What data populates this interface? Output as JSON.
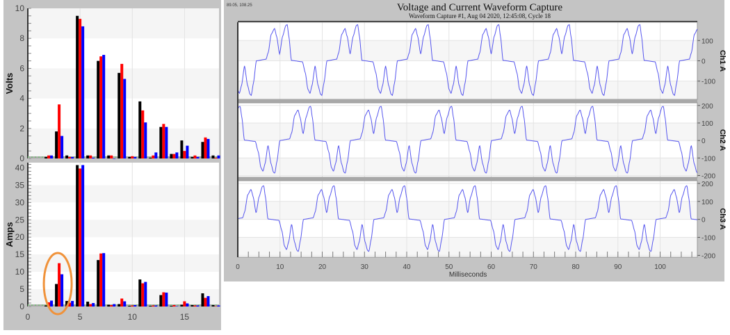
{
  "chart_data": [
    {
      "type": "bar",
      "ylabel": "Volts",
      "ylim": [
        0,
        10
      ],
      "yticks": [
        0,
        2,
        4,
        6,
        8,
        10
      ],
      "xlim": [
        0,
        18.3
      ],
      "xticks": [
        0,
        5,
        10,
        15
      ],
      "categories": [
        2,
        3,
        4,
        5,
        6,
        7,
        8,
        9,
        10,
        11,
        12,
        13,
        14,
        15,
        16,
        17,
        18
      ],
      "series_colors": [
        "#000000",
        "#ff0000",
        "#0000ff"
      ],
      "series": [
        {
          "values": [
            0.1,
            1.8,
            0.2,
            9.5,
            0.2,
            6.5,
            0.2,
            5.7,
            0.1,
            3.8,
            0.05,
            2.1,
            0.3,
            1.2,
            0.1,
            1.1,
            0.2
          ]
        },
        {
          "values": [
            0.2,
            3.6,
            0.1,
            9.3,
            0.2,
            6.8,
            0.2,
            6.3,
            0.15,
            3.2,
            0.2,
            2.3,
            0.3,
            0.5,
            0.2,
            1.4,
            0.05
          ]
        },
        {
          "values": [
            0.2,
            1.5,
            0.1,
            8.8,
            0.05,
            6.9,
            0.0,
            5.3,
            0.1,
            2.4,
            0.4,
            2.1,
            0.4,
            0.85,
            0.1,
            1.3,
            0.2
          ]
        }
      ],
      "grid": true
    },
    {
      "type": "bar",
      "ylabel": "Amps",
      "ylim": [
        0,
        41.5
      ],
      "yticks": [
        0,
        5,
        10,
        15,
        20,
        25,
        30,
        35,
        40
      ],
      "xlim": [
        0,
        18.3
      ],
      "xticks": [
        0,
        5,
        10,
        15
      ],
      "categories": [
        2,
        3,
        4,
        5,
        6,
        7,
        8,
        9,
        10,
        11,
        12,
        13,
        14,
        15,
        16,
        17,
        18
      ],
      "series_colors": [
        "#000000",
        "#ff0000",
        "#0000ff"
      ],
      "series": [
        {
          "values": [
            0.3,
            6.5,
            1.6,
            40.8,
            1.4,
            13.4,
            0.5,
            0.7,
            0.2,
            7.8,
            0.2,
            3.3,
            0.2,
            0.5,
            0.4,
            3.8,
            0.4
          ]
        },
        {
          "values": [
            1.2,
            12.5,
            1.1,
            39.8,
            0.7,
            15.3,
            0.4,
            2.3,
            0.3,
            6.7,
            0.3,
            4.1,
            0.4,
            1.5,
            0.3,
            2.5,
            0.1
          ]
        },
        {
          "values": [
            1.7,
            9.3,
            1.6,
            40.8,
            1.0,
            15.4,
            0.7,
            1.5,
            0.4,
            7.1,
            0.3,
            4.0,
            0.1,
            0.9,
            0.3,
            3.0,
            0.3
          ]
        }
      ],
      "annotation": {
        "type": "ellipse",
        "around_category": 3,
        "color": "#f0923a"
      },
      "grid": true
    },
    {
      "type": "line",
      "title": "Voltage and Current Waveform Capture",
      "subtitle": "Waveform Capture #1, Aug 04 2020, 12:45:08,  Cycle 18",
      "cursor_readout": "89.05, 108.25",
      "xlabel": "Milliseconds",
      "xlim": [
        0,
        108.8
      ],
      "xticks": [
        0,
        10,
        20,
        30,
        40,
        50,
        60,
        70,
        80,
        90,
        100
      ],
      "line_color": "#5555ee",
      "cycle_ms": 16.7,
      "cycle_shape_ch1": [
        [
          0,
          0
        ],
        [
          2.3,
          8
        ],
        [
          2.8,
          40
        ],
        [
          3.5,
          130
        ],
        [
          4.3,
          159
        ],
        [
          4.8,
          120
        ],
        [
          5.5,
          34
        ],
        [
          6.2,
          120
        ],
        [
          7.0,
          175
        ],
        [
          7.3,
          178
        ],
        [
          7.7,
          120
        ],
        [
          8.3,
          2
        ],
        [
          10.9,
          -5
        ],
        [
          11.6,
          -60
        ],
        [
          12.2,
          -140
        ],
        [
          12.7,
          -160
        ],
        [
          13.2,
          -120
        ],
        [
          13.9,
          -25
        ],
        [
          14.6,
          -120
        ],
        [
          15.2,
          -165
        ],
        [
          15.5,
          -170
        ],
        [
          16.0,
          -110
        ],
        [
          16.7,
          0
        ]
      ],
      "panels": [
        {
          "name": "Ch1 A",
          "ylim": [
            -190,
            190
          ],
          "yticks": [
            100,
            0,
            -100
          ],
          "cycle_start_ms": 4.4,
          "scale": 1.0
        },
        {
          "name": "Ch2 A",
          "ylim": [
            -210,
            215
          ],
          "yticks": [
            200,
            100,
            0,
            -100,
            -200
          ],
          "cycle_start_ms": 9.96,
          "scale": 1.1
        },
        {
          "name": "Ch3 A",
          "ylim": [
            -210,
            215
          ],
          "yticks": [
            200,
            100,
            0,
            -100,
            -200
          ],
          "cycle_start_ms": -1.16,
          "scale": 1.05
        }
      ]
    }
  ]
}
